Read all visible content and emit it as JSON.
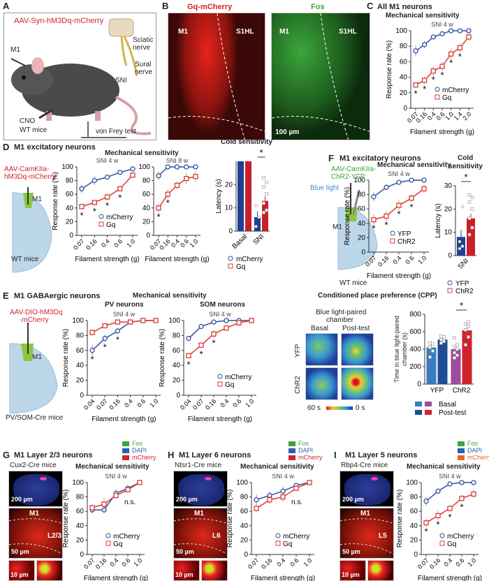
{
  "panels": {
    "A": {
      "label": "A",
      "virus": "AAV-Syn-hM3Dq-mCherry",
      "m1": "M1",
      "sciatic": "Sciatic",
      "sciatic2": "nerve",
      "sural": "Sural",
      "sural2": "nerve",
      "sni": "SNI",
      "cno": "CNO",
      "mice": "WT mice",
      "test": "von Frey test"
    },
    "B": {
      "label": "B",
      "left_title": "Gq-mCherry",
      "right_title": "Fos",
      "m1": "M1",
      "s1hl": "S1HL",
      "scale": "100 µm"
    },
    "C": {
      "label": "C",
      "title": "All M1 neurons",
      "subtitle": "Mechanical sensitivity"
    },
    "D": {
      "label": "D",
      "title": "M1 excitatory neurons",
      "virus1": "AAV-CamKIIa-",
      "virus2": "hM3Dq-mCherry",
      "m1": "M1",
      "mice": "WT mice",
      "mech_title": "Mechanical sensitivity",
      "cold_title": "Cold sensitivity"
    },
    "F": {
      "label": "F",
      "title": "M1 excitatory neurons",
      "virus1": "AAV-CamKIIa-",
      "virus2": "ChR2-YFP",
      "light": "Blue light",
      "m1": "M1",
      "mice": "WT mice",
      "mech_title": "Mechanical sensitivity",
      "cold_title1": "Cold",
      "cold_title2": "sensitivity"
    },
    "E": {
      "label": "E",
      "title": "M1 GABAergic neurons",
      "virus1": "AAV-DIO-hM3Dq",
      "virus2": "-mCherry",
      "m1": "M1",
      "mice": "PV/SOM-Cre mice",
      "mech_title": "Mechanical sensitivity",
      "pv": "PV neurons",
      "som": "SOM neurons",
      "cpp_title": "Conditioned place preference (CPP)",
      "chamber1": "Blue light-paired",
      "chamber2": "chamber",
      "basal": "Basal",
      "post": "Post-test",
      "yfp": "YFP",
      "chr2": "ChR2",
      "scale_max": "60 s",
      "scale_min": "0 s"
    },
    "G": {
      "label": "G",
      "title": "M1 Layer 2/3 neurons",
      "mice": "Cux2-Cre mice",
      "mech_title": "Mechanical sensitivity",
      "scale1": "200 µm",
      "m1": "M1",
      "layer": "L2/3",
      "scale2": "50 µm",
      "scale3": "10 µm"
    },
    "H": {
      "label": "H",
      "title": "M1 Layer 6 neurons",
      "mice": "Ntsr1-Cre mice",
      "mech_title": "Mechanical sensitivity",
      "scale1": "200 µm",
      "m1": "M1",
      "layer": "L6",
      "scale2": "50 µm",
      "scale3": "10 µm"
    },
    "I": {
      "label": "I",
      "title": "M1 Layer 5 neurons",
      "mice": "Rbp4-Cre mice",
      "mech_title": "Mechanical sensitivity",
      "scale1": "200 µm",
      "m1": "M1",
      "layer": "L5",
      "scale2": "50 µm",
      "scale3": "10 µm"
    },
    "stain_legend": [
      {
        "label": "Fos",
        "color": "#3aa63a"
      },
      {
        "label": "DAPI",
        "color": "#2a5fb0"
      },
      {
        "label": "mCherry",
        "color": "#d2232a"
      }
    ],
    "stain_legend_I": [
      {
        "label": "Fos",
        "color": "#3aa63a"
      },
      {
        "label": "DAPI",
        "color": "#2a5fb0"
      },
      {
        "label": "mCherry",
        "color": "#e06a2a"
      }
    ]
  },
  "colors": {
    "blue": "#2f4f9e",
    "red": "#d93b33"
  },
  "chart_data": [
    {
      "id": "C",
      "type": "line",
      "subtitle": "SNI 4 w",
      "xlabel": "Filament strength (g)",
      "ylabel": "Response rate (%)",
      "categories": [
        "0.07",
        "0.16",
        "0.4",
        "0.6",
        "1.0",
        "1.4",
        "2.0"
      ],
      "ylim": [
        0,
        100
      ],
      "yticks": [
        0,
        20,
        40,
        60,
        80,
        100
      ],
      "series": [
        {
          "name": "mCherry",
          "values": [
            74,
            82,
            92,
            96,
            100,
            100,
            100
          ],
          "errors": [
            7,
            5,
            3,
            2,
            0,
            0,
            0
          ]
        },
        {
          "name": "Gq",
          "values": [
            30,
            36,
            48,
            54,
            70,
            78,
            92
          ],
          "errors": [
            3,
            5,
            6,
            6,
            7,
            6,
            5
          ]
        }
      ],
      "stars": [
        0,
        1,
        2,
        3,
        4,
        5
      ],
      "sig_label": "*"
    },
    {
      "id": "D1",
      "type": "line",
      "subtitle": "SNI 4 w",
      "xlabel": "Filament strength (g)",
      "ylabel": "Response rate (%)",
      "categories": [
        "0.07",
        "0.16",
        "0.4",
        "0.6",
        "1.0"
      ],
      "ylim": [
        0,
        100
      ],
      "yticks": [
        0,
        20,
        40,
        60,
        80,
        100
      ],
      "series": [
        {
          "name": "mCherry",
          "values": [
            68,
            80,
            85,
            92,
            97
          ],
          "errors": [
            6,
            7,
            3,
            3,
            2
          ]
        },
        {
          "name": "Gq",
          "values": [
            42,
            48,
            56,
            68,
            88
          ],
          "errors": [
            3,
            2,
            5,
            4,
            4
          ]
        }
      ],
      "stars": [
        0,
        1,
        2,
        3
      ],
      "sig_label": "*"
    },
    {
      "id": "D2",
      "type": "line",
      "subtitle": "SNI 8 w",
      "xlabel": "Filament strength (g)",
      "ylabel": "",
      "categories": [
        "0.07",
        "0.16",
        "0.4",
        "0.6",
        "1.0"
      ],
      "ylim": [
        0,
        100
      ],
      "yticks": [
        0,
        20,
        40,
        60,
        80,
        100
      ],
      "series": [
        {
          "name": "mCherry",
          "values": [
            87,
            100,
            100,
            100,
            100
          ],
          "errors": [
            6,
            0,
            0,
            0,
            0
          ]
        },
        {
          "name": "Gq",
          "values": [
            40,
            60,
            73,
            83,
            86
          ],
          "errors": [
            7,
            7,
            6,
            8,
            7
          ]
        }
      ],
      "stars": [
        0,
        1
      ],
      "sig_label": "*",
      "no_legend": true
    },
    {
      "id": "F1",
      "type": "line",
      "subtitle": "SNI 4 w",
      "xlabel": "Filament strength (g)",
      "ylabel": "Response rate (%)",
      "categories": [
        "0.07",
        "0.16",
        "0.4",
        "0.6",
        "1.0"
      ],
      "ylim": [
        0,
        100
      ],
      "yticks": [
        0,
        20,
        40,
        60,
        80,
        100
      ],
      "series": [
        {
          "name": "YFP",
          "values": [
            77,
            90,
            97,
            100,
            100
          ],
          "errors": [
            6,
            4,
            3,
            0,
            0
          ]
        },
        {
          "name": "ChR2",
          "values": [
            45,
            50,
            65,
            75,
            88
          ],
          "errors": [
            8,
            7,
            7,
            6,
            6
          ]
        }
      ],
      "stars": [
        0,
        1,
        2,
        3
      ],
      "sig_label": "*"
    },
    {
      "id": "EPV",
      "type": "line",
      "subtitle": "SNI 4 w",
      "xlabel": "Filament strength (g)",
      "ylabel": "Response rate (%)",
      "categories": [
        "0.04",
        "0.07",
        "0.16",
        "0.4",
        "0.6",
        "1.0"
      ],
      "ylim": [
        0,
        100
      ],
      "yticks": [
        0,
        20,
        40,
        60,
        80,
        100
      ],
      "series": [
        {
          "name": "mCherry",
          "values": [
            60,
            76,
            86,
            98,
            100,
            100
          ],
          "errors": [
            7,
            5,
            4,
            1,
            0,
            0
          ]
        },
        {
          "name": "Gq",
          "values": [
            84,
            93,
            98,
            98,
            100,
            100
          ],
          "errors": [
            4,
            2,
            1,
            1,
            0,
            0
          ]
        }
      ],
      "stars": [
        0,
        1,
        2
      ],
      "sig_label": "*",
      "no_legend": true
    },
    {
      "id": "ESOM",
      "type": "line",
      "subtitle": "SNI 4 w",
      "xlabel": "Filament strength (g)",
      "ylabel": "Response rate (%)",
      "categories": [
        "0.04",
        "0.07",
        "0.16",
        "0.4",
        "0.6",
        "1.0"
      ],
      "ylim": [
        0,
        100
      ],
      "yticks": [
        0,
        20,
        40,
        60,
        80,
        100
      ],
      "series": [
        {
          "name": "mCherry",
          "values": [
            76,
            92,
            98,
            100,
            100,
            100
          ],
          "errors": [
            2,
            3,
            1,
            0,
            0,
            0
          ]
        },
        {
          "name": "Gq",
          "values": [
            53,
            67,
            82,
            90,
            97,
            100
          ],
          "errors": [
            3,
            2,
            5,
            3,
            2,
            0
          ]
        }
      ],
      "stars": [
        0,
        1,
        2
      ],
      "sig_label": "*"
    },
    {
      "id": "G",
      "type": "line",
      "subtitle": "SNI 4 w",
      "xlabel": "Filament strength (g)",
      "ylabel": "Response rate (%)",
      "categories": [
        "0.07",
        "0.16",
        "0.4",
        "0.6",
        "1.0"
      ],
      "ylim": [
        0,
        100
      ],
      "yticks": [
        0,
        20,
        40,
        60,
        80,
        100
      ],
      "series": [
        {
          "name": "mCherry",
          "values": [
            62,
            62,
            85,
            92,
            100
          ],
          "errors": [
            5,
            5,
            5,
            4,
            0
          ]
        },
        {
          "name": "Gq",
          "values": [
            65,
            70,
            82,
            90,
            100
          ],
          "errors": [
            5,
            9,
            4,
            3,
            0
          ]
        }
      ],
      "stars": [],
      "ns_label": "n.s.",
      "ns_index": 2
    },
    {
      "id": "H",
      "type": "line",
      "subtitle": "SNI 4 w",
      "xlabel": "Filament strength (g)",
      "ylabel": "Response rate (%)",
      "categories": [
        "0.07",
        "0.16",
        "0.4",
        "0.6",
        "1.0"
      ],
      "ylim": [
        0,
        100
      ],
      "yticks": [
        0,
        20,
        40,
        60,
        80,
        100
      ],
      "series": [
        {
          "name": "mCherry",
          "values": [
            76,
            82,
            88,
            96,
            100
          ],
          "errors": [
            7,
            6,
            6,
            2,
            0
          ]
        },
        {
          "name": "Gq",
          "values": [
            64,
            76,
            80,
            92,
            100
          ],
          "errors": [
            6,
            6,
            7,
            4,
            0
          ]
        }
      ],
      "stars": [],
      "ns_label": "n.s.",
      "ns_index": 2
    },
    {
      "id": "I",
      "type": "line",
      "subtitle": "SNI 4 w",
      "xlabel": "Filament strength (g)",
      "ylabel": "Response rate (%)",
      "categories": [
        "0.07",
        "0.16",
        "0.4",
        "0.6",
        "1.0"
      ],
      "ylim": [
        0,
        100
      ],
      "yticks": [
        0,
        20,
        40,
        60,
        80,
        100
      ],
      "series": [
        {
          "name": "mCherry",
          "values": [
            74,
            88,
            98,
            100,
            100
          ],
          "errors": [
            6,
            4,
            1,
            0,
            0
          ]
        },
        {
          "name": "Gq",
          "values": [
            44,
            54,
            64,
            78,
            84
          ],
          "errors": [
            6,
            7,
            5,
            5,
            6
          ]
        }
      ],
      "stars": [
        0,
        1,
        2,
        3
      ],
      "sig_label": "*"
    },
    {
      "id": "Dcold",
      "type": "bar",
      "ylabel": "Latency (s)",
      "ylim": [
        0,
        30
      ],
      "yticks": [
        0,
        10,
        20
      ],
      "groups": [
        {
          "label": "Basal",
          "bars": [
            {
              "series": "mCherry",
              "value": 30,
              "color": "#1f3f94"
            },
            {
              "series": "Gq",
              "value": 30,
              "color": "#c8202a"
            }
          ]
        },
        {
          "label": "SNI",
          "bars": [
            {
              "series": "mCherry",
              "value": 6,
              "err": 2.5,
              "color": "#1f3f94",
              "points": [
                2,
                6,
                11
              ]
            },
            {
              "series": "Gq",
              "value": 13,
              "err": 2,
              "color": "#c8202a",
              "points": [
                8,
                9,
                12,
                16,
                19,
                21,
                23
              ]
            }
          ]
        }
      ],
      "star_group": 1,
      "sig_label": "*",
      "legend": [
        "mCherry",
        "Gq"
      ]
    },
    {
      "id": "Fcold",
      "type": "bar",
      "ylabel": "Latency (s)",
      "ylim": [
        0,
        30
      ],
      "yticks": [
        0,
        10,
        20,
        30
      ],
      "groups": [
        {
          "label": "SNI",
          "bars": [
            {
              "series": "YFP",
              "value": 8,
              "err": 3,
              "color": "#1f3f94",
              "points": [
                3,
                4,
                6,
                21
              ]
            },
            {
              "series": "ChR2",
              "value": 16,
              "err": 2,
              "color": "#c8202a",
              "points": [
                9,
                12,
                16,
                20,
                23,
                25,
                26
              ]
            }
          ]
        }
      ],
      "star_group": 0,
      "sig_label": "*",
      "legend": [
        "YFP",
        "ChR2"
      ]
    },
    {
      "id": "CPP",
      "type": "bar",
      "ylabel": "Time in blue light-paired chamber (s)",
      "ylim": [
        0,
        800
      ],
      "yticks": [
        0,
        200,
        400,
        600,
        800
      ],
      "groups": [
        {
          "label": "YFP",
          "bars": [
            {
              "series": "Basal",
              "value": 420,
              "err": 30,
              "color": "#3a7bbf",
              "points": [
                310,
                380,
                420,
                460,
                470
              ]
            },
            {
              "series": "Post-test",
              "value": 510,
              "err": 20,
              "color": "#1f4c96",
              "points": [
                470,
                490,
                510,
                540,
                550
              ]
            }
          ]
        },
        {
          "label": "ChR2",
          "bars": [
            {
              "series": "Basal",
              "value": 400,
              "err": 30,
              "color": "#a04a9a",
              "points": [
                300,
                330,
                360,
                400,
                430,
                450,
                530
              ]
            },
            {
              "series": "Post-test",
              "value": 615,
              "err": 30,
              "color": "#d0232a",
              "points": [
                450,
                540,
                620,
                660,
                690,
                710
              ]
            }
          ]
        }
      ],
      "star_group": 1,
      "sig_label": "*",
      "legend": [
        "Basal",
        "Post-test"
      ]
    }
  ]
}
